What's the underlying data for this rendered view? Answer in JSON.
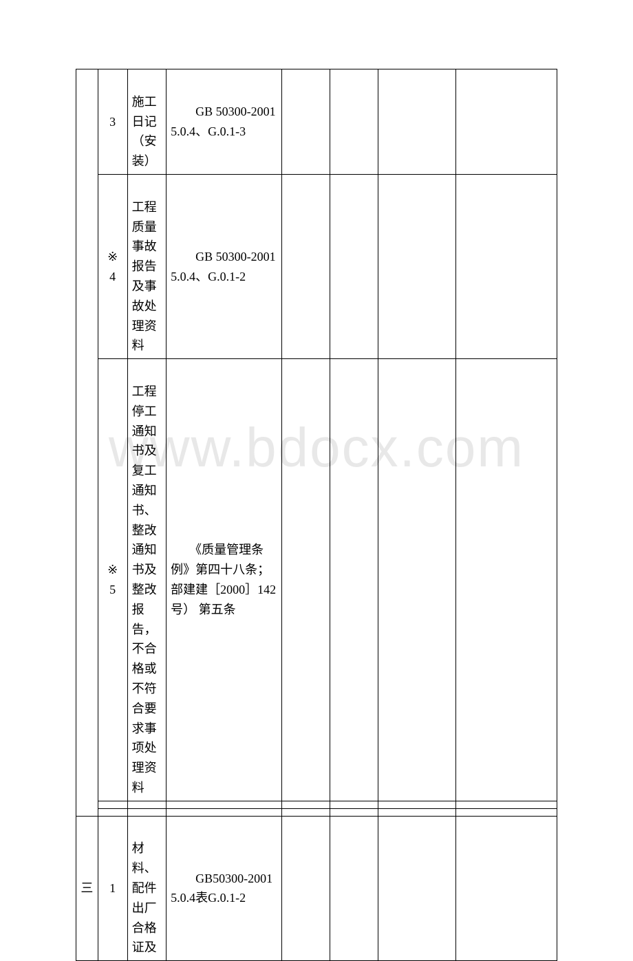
{
  "watermark": "www.bdocx.com",
  "table": {
    "colors": {
      "border": "#000000",
      "background": "#ffffff",
      "text": "#000000",
      "watermark": "#e8e8e8"
    },
    "rows": [
      {
        "c1_mark": "",
        "c1_num": "3",
        "c2": "　　施工日记（安装）",
        "c3": "　　GB 50300-2001 5.0.4、G.0.1-3"
      },
      {
        "c1_mark": "※",
        "c1_num": "4",
        "c2": "　　工程质量事故报告及事故处理资料",
        "c3": "　　GB 50300-2001 5.0.4、G.0.1-2"
      },
      {
        "c1_mark": "※",
        "c1_num": "5",
        "c2": "　　工程停工通知书及复工通知书、整改通知书及整改报告，不合格或不符合要求事项处理资料",
        "c3": "　　《质量管理条例》第四十八条；部建建［2000］142号） 第五条"
      },
      {
        "c0": "三",
        "c1_mark": "",
        "c1_num": "1",
        "c2": "　　材料、配件出厂合格证及",
        "c3": "　　GB50300-2001 5.0.4表G.0.1-2"
      }
    ]
  }
}
